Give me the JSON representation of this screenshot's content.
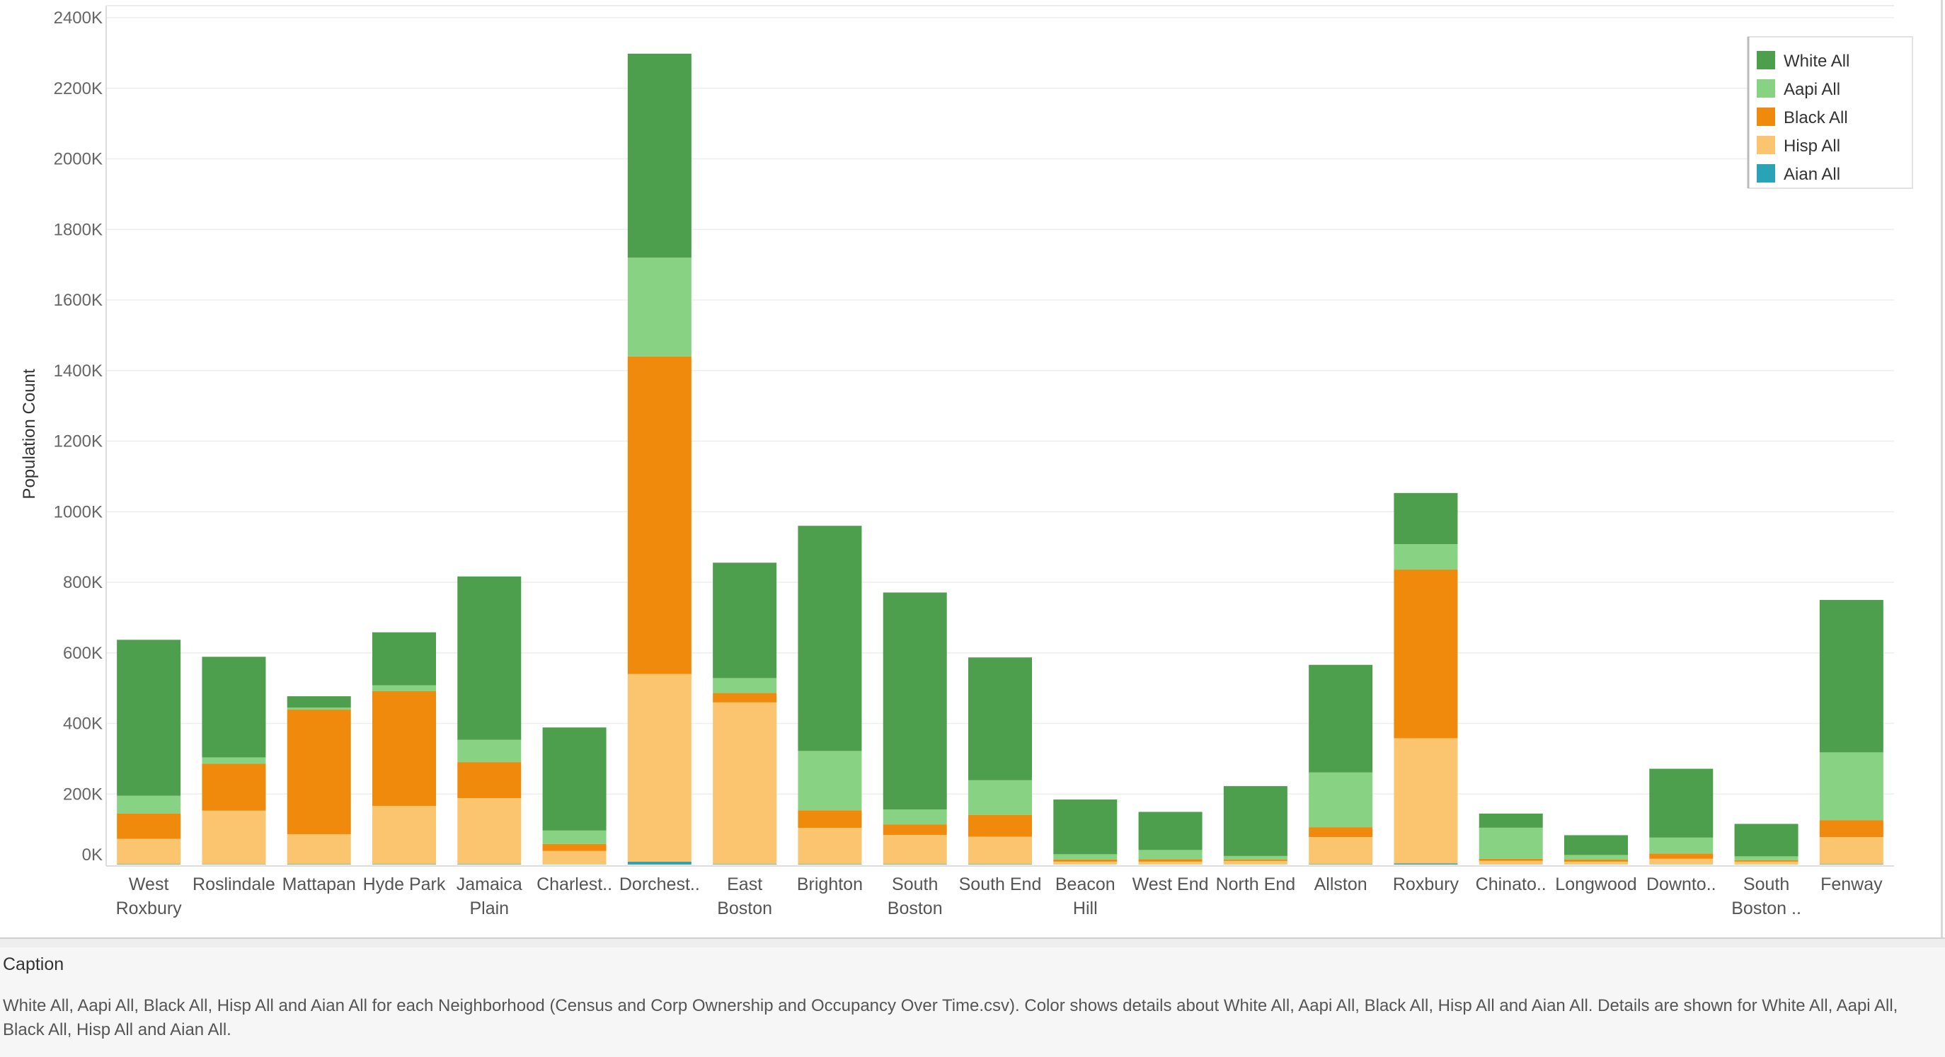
{
  "chart_data": {
    "type": "bar",
    "stacked": true,
    "title": "",
    "xlabel": "",
    "ylabel": "Population Count",
    "ylim": [
      0,
      2400000
    ],
    "y_ticks": [
      "0K",
      "200K",
      "400K",
      "600K",
      "800K",
      "1000K",
      "1200K",
      "1400K",
      "1600K",
      "1800K",
      "2000K",
      "2200K",
      "2400K"
    ],
    "grid": true,
    "legend_position": "top-right",
    "categories": [
      [
        "West",
        "Roxbury"
      ],
      [
        "Roslindale"
      ],
      [
        "Mattapan"
      ],
      [
        "Hyde Park"
      ],
      [
        "Jamaica",
        "Plain"
      ],
      [
        "Charlest.."
      ],
      [
        "Dorchest.."
      ],
      [
        "East",
        "Boston"
      ],
      [
        "Brighton"
      ],
      [
        "South",
        "Boston"
      ],
      [
        "South End"
      ],
      [
        "Beacon",
        "Hill"
      ],
      [
        "West End"
      ],
      [
        "North End"
      ],
      [
        "Allston"
      ],
      [
        "Roxbury"
      ],
      [
        "Chinato.."
      ],
      [
        "Longwood"
      ],
      [
        "Downto.."
      ],
      [
        "South",
        "Boston .."
      ],
      [
        "Fenway"
      ]
    ],
    "series": [
      {
        "name": "Aian All",
        "color": "#2ba3b6",
        "values": [
          1000,
          800,
          1000,
          1200,
          1500,
          500,
          8000,
          1500,
          1000,
          1000,
          1000,
          300,
          300,
          300,
          1000,
          3000,
          500,
          200,
          500,
          300,
          1000
        ]
      },
      {
        "name": "Hisp All",
        "color": "#fbc570",
        "values": [
          72000,
          152000,
          85000,
          165000,
          187000,
          38000,
          532000,
          458000,
          103000,
          83000,
          78000,
          8000,
          8000,
          10000,
          77000,
          355000,
          10000,
          8000,
          16000,
          8000,
          77000
        ]
      },
      {
        "name": "Black All",
        "color": "#ef8a0c",
        "values": [
          72000,
          133000,
          353000,
          325000,
          102000,
          20000,
          900000,
          27000,
          50000,
          30000,
          62000,
          6000,
          7000,
          4000,
          28000,
          478000,
          6000,
          6000,
          15000,
          4000,
          48000
        ]
      },
      {
        "name": "Aapi All",
        "color": "#88d283",
        "values": [
          50000,
          18000,
          6000,
          17000,
          63000,
          38000,
          280000,
          42000,
          168000,
          42000,
          98000,
          15000,
          26000,
          10000,
          155000,
          72000,
          88000,
          13000,
          45000,
          11000,
          192000
        ]
      },
      {
        "name": "White All",
        "color": "#4d9e4d",
        "values": [
          442000,
          285000,
          32000,
          150000,
          463000,
          292000,
          578000,
          327000,
          638000,
          615000,
          348000,
          155000,
          108000,
          198000,
          305000,
          145000,
          40000,
          56000,
          195000,
          92000,
          432000
        ]
      }
    ],
    "legend_order": [
      "White All",
      "Aapi All",
      "Black All",
      "Hisp All",
      "Aian All"
    ]
  },
  "caption": {
    "title": "Caption",
    "text": "White All, Aapi All, Black All, Hisp All and Aian All for each Neighborhood (Census and Corp Ownership and Occupancy Over Time.csv).  Color shows details about White All, Aapi All, Black All, Hisp All and Aian All.  Details are shown for White All, Aapi All, Black All, Hisp All and Aian All."
  }
}
